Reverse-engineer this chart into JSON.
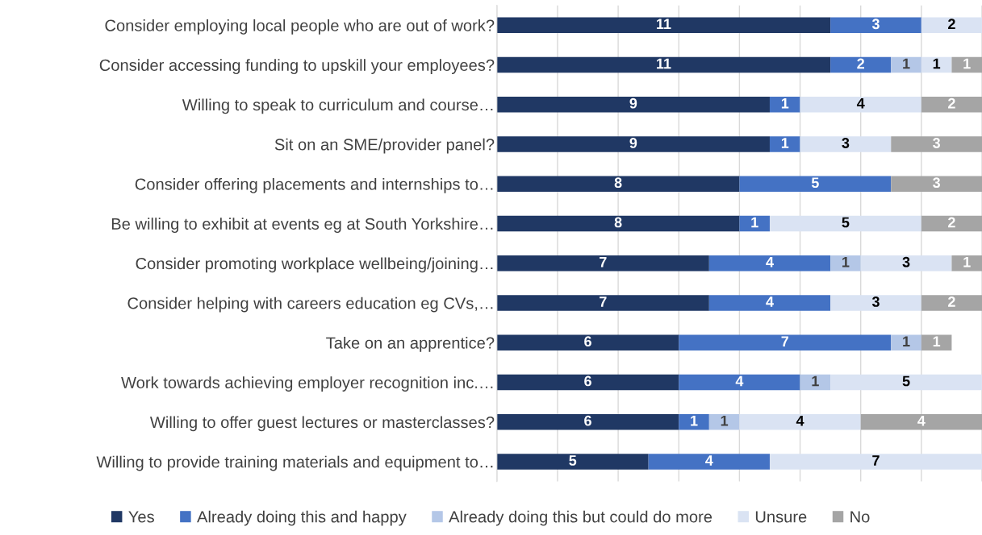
{
  "chart_data": {
    "type": "bar",
    "orientation": "horizontal",
    "stacked": true,
    "categories": [
      "Consider employing local people who are out of work?",
      "Consider accessing funding to upskill your employees?",
      "Willing to speak to curriculum and course…",
      "Sit on an SME/provider panel?",
      "Consider offering placements and internships to…",
      "Be willing to exhibit at events eg at South Yorkshire…",
      "Consider promoting workplace wellbeing/joining…",
      "Consider helping with careers education eg CVs,…",
      "Take on an apprentice?",
      "Work towards achieving employer recognition inc.…",
      "Willing to offer guest lectures or masterclasses?",
      "Willing to provide training materials and equipment to…"
    ],
    "series": [
      {
        "name": "Yes",
        "color": "#203864",
        "values": [
          11,
          11,
          9,
          9,
          8,
          8,
          7,
          7,
          6,
          6,
          6,
          5
        ]
      },
      {
        "name": "Already doing this and happy",
        "color": "#4472c4",
        "values": [
          3,
          2,
          1,
          1,
          5,
          1,
          4,
          4,
          7,
          4,
          1,
          4
        ]
      },
      {
        "name": "Already doing this but could do more",
        "color": "#b4c7e7",
        "values": [
          null,
          1,
          null,
          null,
          null,
          null,
          1,
          null,
          1,
          1,
          1,
          null
        ]
      },
      {
        "name": "Unsure",
        "color": "#dae3f3",
        "values": [
          2,
          1,
          4,
          3,
          null,
          5,
          3,
          3,
          null,
          5,
          4,
          7
        ]
      },
      {
        "name": "No",
        "color": "#a5a5a5",
        "values": [
          null,
          1,
          2,
          3,
          3,
          2,
          1,
          2,
          1,
          null,
          4,
          null
        ]
      }
    ],
    "xlim": [
      0,
      16
    ],
    "xticks": [
      {
        "value": 0,
        "label": null
      },
      {
        "value": 2,
        "label": null
      },
      {
        "value": 4,
        "label": null
      },
      {
        "value": 6,
        "label": null
      },
      {
        "value": 8,
        "label": null
      },
      {
        "value": 10,
        "label": null
      },
      {
        "value": 12,
        "label": null
      },
      {
        "value": 14,
        "label": null
      },
      {
        "value": 16,
        "label": null
      }
    ],
    "tick_labels": "y",
    "grid": "x",
    "legend": "bottom",
    "data_labels": true
  }
}
